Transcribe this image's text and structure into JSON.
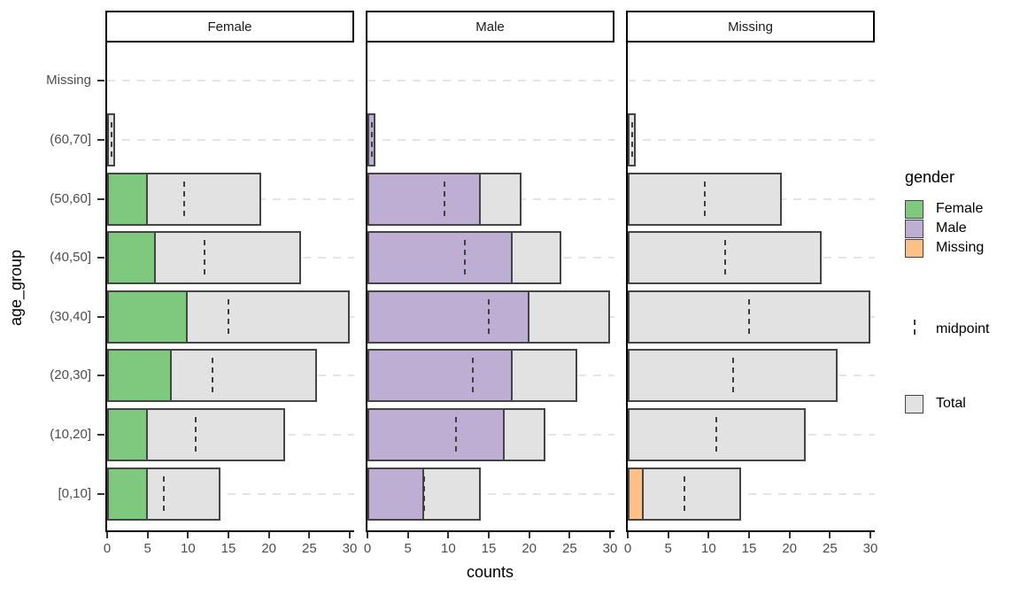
{
  "chart_data": {
    "type": "bar",
    "orientation": "horizontal",
    "title": "",
    "xlabel": "counts",
    "ylabel": "age_group",
    "xlim": [
      0,
      30
    ],
    "xticks": [
      0,
      5,
      10,
      15,
      20,
      25,
      30
    ],
    "grid": "horizontal-dashed",
    "legend_position": "right",
    "facets": [
      "Female",
      "Male",
      "Missing"
    ],
    "categories": [
      "Missing",
      "(60,70]",
      "(50,60]",
      "(40,50]",
      "(30,40]",
      "(20,30]",
      "(10,20]",
      "[0,10]"
    ],
    "total_series_name": "Total",
    "total": [
      0,
      1,
      19,
      24,
      30,
      26,
      22,
      14
    ],
    "series": [
      {
        "name": "Female",
        "color": "#7FC97F",
        "values": [
          0,
          0,
          5,
          6,
          10,
          8,
          5,
          5
        ]
      },
      {
        "name": "Male",
        "color": "#BEAED4",
        "values": [
          0,
          1,
          14,
          18,
          20,
          18,
          17,
          7
        ]
      },
      {
        "name": "Missing",
        "color": "#FDC086",
        "values": [
          0,
          0,
          0,
          0,
          0,
          0,
          0,
          2
        ]
      }
    ],
    "midpoints": [
      null,
      0.5,
      9.5,
      12,
      15,
      13,
      11,
      7
    ]
  },
  "legend": {
    "gender_title": "gender",
    "items": [
      {
        "label": "Female",
        "color": "#7FC97F"
      },
      {
        "label": "Male",
        "color": "#BEAED4"
      },
      {
        "label": "Missing",
        "color": "#FDC086"
      }
    ],
    "midpoint_label": "midpoint",
    "total_label": "Total",
    "total_color": "#E2E2E2"
  },
  "colors": {
    "total_fill": "#E2E2E2",
    "bar_border": "#454545",
    "axis_line": "#000000",
    "tick_label": "#4D4D4D",
    "gridline": "#E4E4E4",
    "midpoint": "#404040",
    "strip_background": "#FFFFFF",
    "strip_border": "#000000"
  }
}
